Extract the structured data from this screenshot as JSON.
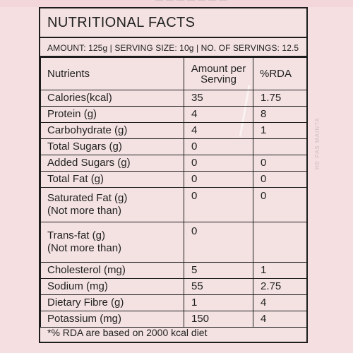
{
  "page": {
    "background_color": "#f6dfe1",
    "top_strip_text": "— — — — — — —",
    "side_ghost_text": "HE PAS MAINTA"
  },
  "label": {
    "title": "NUTRITIONAL FACTS",
    "summary": "AMOUNT: 125g | SERVING SIZE: 10g | NO. OF SERVINGS: 12.5",
    "headers": {
      "nutrients": "Nutrients",
      "amount_line1": "Amount per",
      "amount_line2": "Serving",
      "rda": "%RDA"
    },
    "rows": [
      {
        "nutrient": "Calories(kcal)",
        "amount": "35",
        "rda": "1.75"
      },
      {
        "nutrient": "Protein (g)",
        "amount": "4",
        "rda": "8"
      },
      {
        "nutrient": "Carbohydrate (g)",
        "amount": "4",
        "rda": "1"
      },
      {
        "nutrient": "Total Sugars (g)",
        "amount": "0",
        "rda": ""
      },
      {
        "nutrient": "Added Sugars (g)",
        "amount": "0",
        "rda": "0"
      },
      {
        "nutrient": "Total Fat (g)",
        "amount": "0",
        "rda": "0"
      },
      {
        "nutrient": "Saturated Fat (g)",
        "nutrient_line2": "(Not more than)",
        "amount": "0",
        "rda": "0"
      },
      {
        "nutrient": "Trans-fat (g)",
        "nutrient_line2": "(Not more than)",
        "amount": "0",
        "rda": ""
      },
      {
        "nutrient": "Cholesterol (mg)",
        "amount": "5",
        "rda": "1"
      },
      {
        "nutrient": "Sodium (mg)",
        "amount": "55",
        "rda": "2.75"
      },
      {
        "nutrient": "Dietary Fibre (g)",
        "amount": "1",
        "rda": "4"
      },
      {
        "nutrient": "Potassium (mg)",
        "amount": "150",
        "rda": "4"
      }
    ],
    "footnote": "*% RDA are based on 2000 kcal diet"
  }
}
